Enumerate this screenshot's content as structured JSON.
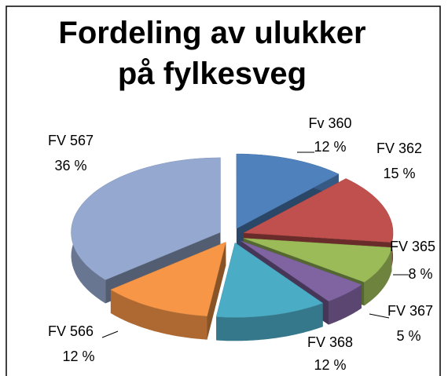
{
  "chart_data": {
    "type": "pie3d",
    "title": "Fordeling av ulukker på fylkesveg",
    "categories": [
      "Fv 360",
      "FV 362",
      "FV 365",
      "FV 367",
      "FV 368",
      "FV 566",
      "FV 567"
    ],
    "values": [
      12,
      15,
      8,
      5,
      12,
      12,
      36
    ],
    "value_labels": [
      "12 %",
      "15 %",
      "8 %",
      "5 %",
      "12 %",
      "12 %",
      "36 %"
    ],
    "colors": [
      "#4f81bd",
      "#c0504d",
      "#9bbb59",
      "#8064a2",
      "#4bacc6",
      "#f79646",
      "#95a9d0"
    ]
  }
}
